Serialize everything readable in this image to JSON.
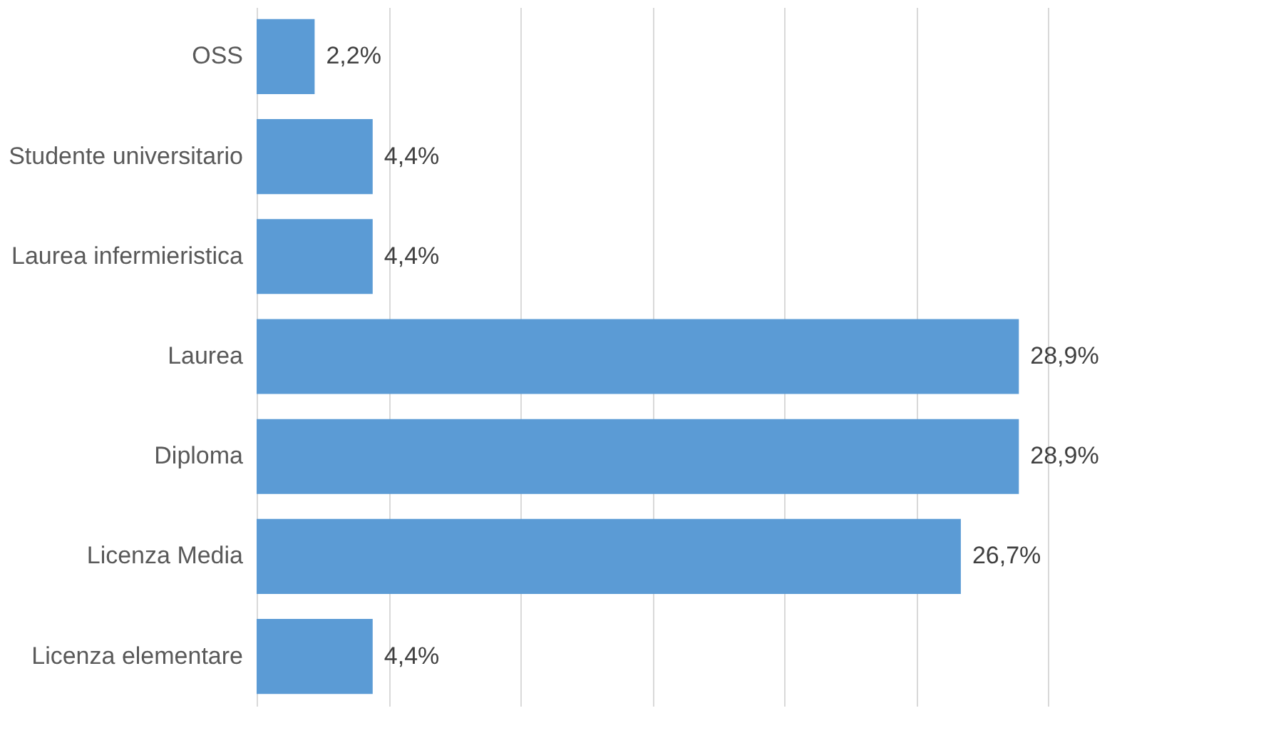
{
  "chart_data": {
    "type": "bar",
    "orientation": "horizontal",
    "categories": [
      "OSS",
      "Studente universitario",
      "Laurea infermieristica",
      "Laurea",
      "Diploma",
      "Licenza Media",
      "Licenza elementare"
    ],
    "values": [
      2.2,
      4.4,
      4.4,
      28.9,
      28.9,
      26.7,
      4.4
    ],
    "value_labels": [
      "2,2%",
      "4,4%",
      "4,4%",
      "28,9%",
      "28,9%",
      "26,7%",
      "4,4%"
    ],
    "color": "#5b9bd5",
    "xlim": [
      0,
      30
    ],
    "xticks": [
      {
        "value": 0,
        "label": null
      },
      {
        "value": 5,
        "label": null
      },
      {
        "value": 10,
        "label": null
      },
      {
        "value": 15,
        "label": null
      },
      {
        "value": 20,
        "label": null
      },
      {
        "value": 25,
        "label": null
      },
      {
        "value": 30,
        "label": null
      }
    ],
    "grid": "x",
    "tick_labels": "y"
  }
}
